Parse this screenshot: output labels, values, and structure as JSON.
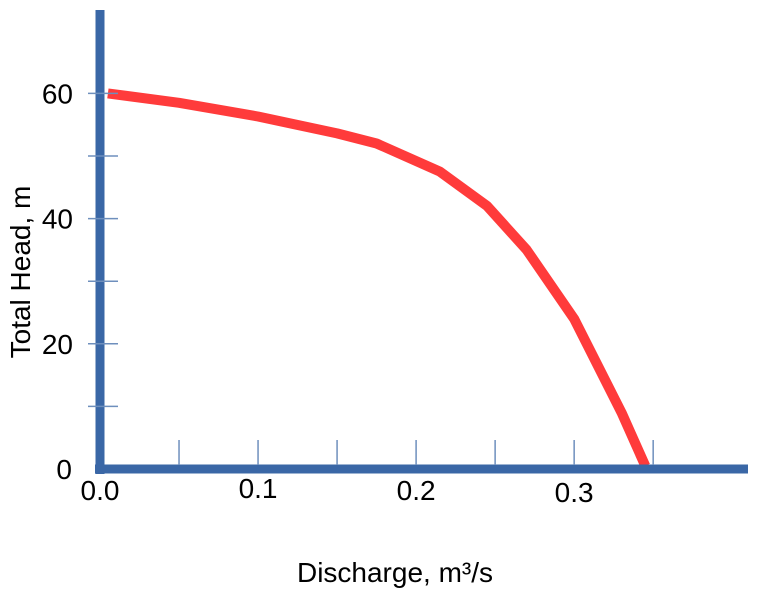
{
  "chart_data": {
    "type": "line",
    "title": "",
    "xlabel": "Discharge, m³/s",
    "ylabel": "Total Head, m",
    "xlim": [
      0,
      0.41
    ],
    "ylim": [
      0,
      73
    ],
    "x_ticks": [
      {
        "value": 0.0,
        "label": "0.0"
      },
      {
        "value": 0.1,
        "label": "0.1"
      },
      {
        "value": 0.2,
        "label": "0.2"
      },
      {
        "value": 0.3,
        "label": "0.3"
      }
    ],
    "x_minor_ticks": [
      0.05,
      0.15,
      0.25,
      0.35
    ],
    "y_ticks": [
      {
        "value": 0,
        "label": "0"
      },
      {
        "value": 20,
        "label": "20"
      },
      {
        "value": 40,
        "label": "40"
      },
      {
        "value": 60,
        "label": "60"
      }
    ],
    "y_minor_ticks": [
      10,
      30,
      50
    ],
    "grid": false,
    "legend": "none",
    "series": [
      {
        "color": "#ff3b3b",
        "x": [
          0.005,
          0.05,
          0.1,
          0.15,
          0.175,
          0.215,
          0.245,
          0.27,
          0.3,
          0.33,
          0.345
        ],
        "y": [
          60,
          58.5,
          56.3,
          53.6,
          52,
          47.5,
          42,
          35,
          24,
          9,
          0.5
        ]
      }
    ],
    "axis_color": "#3a67a6"
  }
}
